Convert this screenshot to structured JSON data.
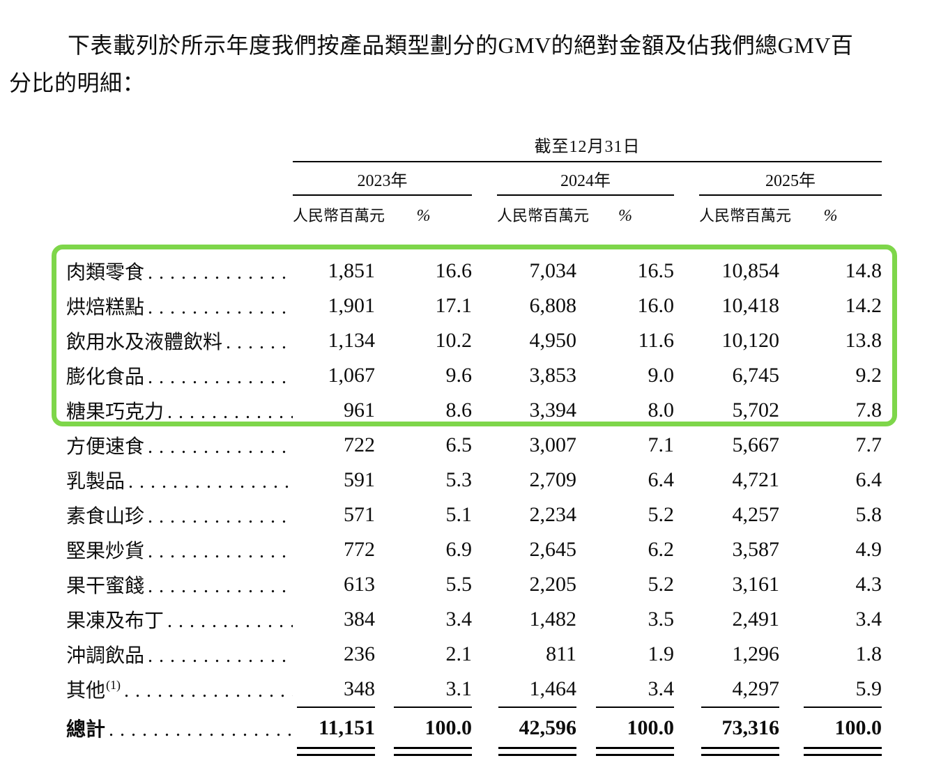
{
  "intro": {
    "lines": [
      "下表載列於所示年度我們按產品類型劃分的GMV的絕對金額及佔我們總GMV百",
      "分比的明細："
    ]
  },
  "table": {
    "span_header": "截至12月31日",
    "years": [
      "2023年",
      "2024年",
      "2025年"
    ],
    "unit_header": "人民幣百萬元",
    "pct_header": "%",
    "rows": [
      {
        "label": "肉類零食",
        "highlight": true,
        "values": [
          "1,851",
          "16.6",
          "7,034",
          "16.5",
          "10,854",
          "14.8"
        ]
      },
      {
        "label": "烘焙糕點",
        "highlight": true,
        "values": [
          "1,901",
          "17.1",
          "6,808",
          "16.0",
          "10,418",
          "14.2"
        ]
      },
      {
        "label": "飲用水及液體飲料",
        "highlight": true,
        "values": [
          "1,134",
          "10.2",
          "4,950",
          "11.6",
          "10,120",
          "13.8"
        ]
      },
      {
        "label": "膨化食品",
        "highlight": true,
        "values": [
          "1,067",
          "9.6",
          "3,853",
          "9.0",
          "6,745",
          "9.2"
        ]
      },
      {
        "label": "糖果巧克力",
        "highlight": true,
        "values": [
          "961",
          "8.6",
          "3,394",
          "8.0",
          "5,702",
          "7.8"
        ]
      },
      {
        "label": "方便速食",
        "highlight": false,
        "values": [
          "722",
          "6.5",
          "3,007",
          "7.1",
          "5,667",
          "7.7"
        ]
      },
      {
        "label": "乳製品",
        "highlight": false,
        "values": [
          "591",
          "5.3",
          "2,709",
          "6.4",
          "4,721",
          "6.4"
        ]
      },
      {
        "label": "素食山珍",
        "highlight": false,
        "values": [
          "571",
          "5.1",
          "2,234",
          "5.2",
          "4,257",
          "5.8"
        ]
      },
      {
        "label": "堅果炒貨",
        "highlight": false,
        "values": [
          "772",
          "6.9",
          "2,645",
          "6.2",
          "3,587",
          "4.9"
        ]
      },
      {
        "label": "果干蜜餞",
        "highlight": false,
        "values": [
          "613",
          "5.5",
          "2,205",
          "5.2",
          "3,161",
          "4.3"
        ]
      },
      {
        "label": "果凍及布丁",
        "highlight": false,
        "values": [
          "384",
          "3.4",
          "1,482",
          "3.5",
          "2,491",
          "3.4"
        ]
      },
      {
        "label": "沖調飲品",
        "highlight": false,
        "values": [
          "236",
          "2.1",
          "811",
          "1.9",
          "1,296",
          "1.8"
        ]
      },
      {
        "label": "其他",
        "highlight": false,
        "note": "(1)",
        "values": [
          "348",
          "3.1",
          "1,464",
          "3.4",
          "4,297",
          "5.9"
        ]
      }
    ],
    "total": {
      "label": "總計",
      "values": [
        "11,151",
        "100.0",
        "42,596",
        "100.0",
        "73,316",
        "100.0"
      ]
    }
  },
  "annotation": {
    "highlight_box_color": "#7ed64a"
  }
}
